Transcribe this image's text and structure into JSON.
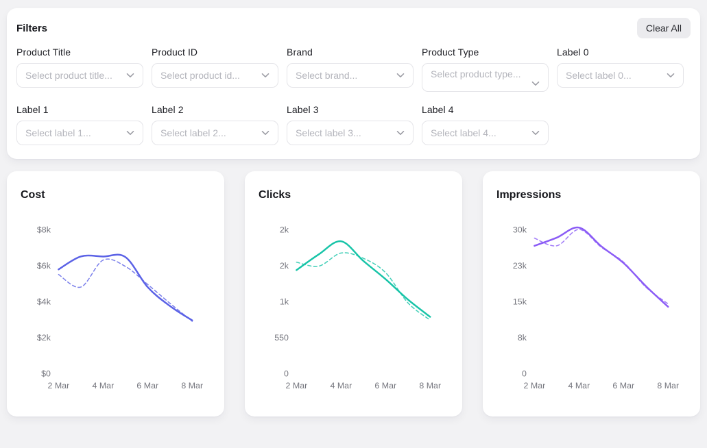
{
  "theme": {
    "page_bg": "#f2f2f4",
    "card_bg": "#ffffff",
    "text_dark": "#17181d",
    "axis_text": "#75767e",
    "placeholder_text": "#b4b5bc",
    "field_border": "#e4e4e8",
    "clear_all_bg": "#ebebee",
    "cost_line": "#5b62e6",
    "clicks_line": "#18c4a8",
    "impressions_line": "#8b5cf6"
  },
  "filters": {
    "title": "Filters",
    "clear_all_label": "Clear All",
    "fields": [
      {
        "label": "Product Title",
        "placeholder": "Select product title...",
        "chevron_wrapped": false
      },
      {
        "label": "Product ID",
        "placeholder": "Select product id...",
        "chevron_wrapped": false
      },
      {
        "label": "Brand",
        "placeholder": "Select brand...",
        "chevron_wrapped": false
      },
      {
        "label": "Product Type",
        "placeholder": "Select product type...",
        "chevron_wrapped": true
      },
      {
        "label": "Label 0",
        "placeholder": "Select label 0...",
        "chevron_wrapped": false
      },
      {
        "label": "Label 1",
        "placeholder": "Select label 1...",
        "chevron_wrapped": false
      },
      {
        "label": "Label 2",
        "placeholder": "Select label 2...",
        "chevron_wrapped": false
      },
      {
        "label": "Label 3",
        "placeholder": "Select label 3...",
        "chevron_wrapped": false
      },
      {
        "label": "Label 4",
        "placeholder": "Select label 4...",
        "chevron_wrapped": false
      }
    ]
  },
  "chart_data": [
    {
      "type": "line",
      "title": "Cost",
      "color": "#5b62e6",
      "grid": false,
      "legend": "none",
      "x": [
        "2 Mar",
        "3 Mar",
        "4 Mar",
        "5 Mar",
        "6 Mar",
        "7 Mar",
        "8 Mar"
      ],
      "x_tick_labels": [
        "2 Mar",
        "4 Mar",
        "6 Mar",
        "8 Mar"
      ],
      "y_tick_labels": [
        "$8k",
        "$6k",
        "$4k",
        "$2k",
        "$0"
      ],
      "y_tick_values": [
        8000,
        6000,
        4000,
        2000,
        0
      ],
      "y_axis_max": 8000,
      "series": [
        {
          "name": "current",
          "style": "solid",
          "values": [
            5780,
            6500,
            6500,
            6470,
            4800,
            3750,
            2950
          ]
        },
        {
          "name": "previous",
          "style": "dashed",
          "values": [
            5500,
            4800,
            6300,
            5950,
            4950,
            3900,
            2900
          ]
        }
      ]
    },
    {
      "type": "line",
      "title": "Clicks",
      "color": "#18c4a8",
      "grid": false,
      "legend": "none",
      "x": [
        "2 Mar",
        "3 Mar",
        "4 Mar",
        "5 Mar",
        "6 Mar",
        "7 Mar",
        "8 Mar"
      ],
      "x_tick_labels": [
        "2 Mar",
        "4 Mar",
        "6 Mar",
        "8 Mar"
      ],
      "y_tick_labels": [
        "2k",
        "2k",
        "1k",
        "550",
        "0"
      ],
      "y_tick_values": [
        2200,
        1650,
        1100,
        550,
        0
      ],
      "y_axis_max": 2200,
      "series": [
        {
          "name": "current",
          "style": "solid",
          "values": [
            1580,
            1820,
            2020,
            1720,
            1440,
            1130,
            865
          ]
        },
        {
          "name": "previous",
          "style": "dashed",
          "values": [
            1700,
            1640,
            1840,
            1760,
            1540,
            1080,
            815
          ]
        }
      ]
    },
    {
      "type": "line",
      "title": "Impressions",
      "color": "#8b5cf6",
      "grid": false,
      "legend": "none",
      "x": [
        "2 Mar",
        "3 Mar",
        "4 Mar",
        "5 Mar",
        "6 Mar",
        "7 Mar",
        "8 Mar"
      ],
      "x_tick_labels": [
        "2 Mar",
        "4 Mar",
        "6 Mar",
        "8 Mar"
      ],
      "y_tick_labels": [
        "30k",
        "23k",
        "15k",
        "8k",
        "0"
      ],
      "y_tick_values": [
        30000,
        22500,
        15000,
        7500,
        0
      ],
      "y_axis_max": 30000,
      "series": [
        {
          "name": "current",
          "style": "solid",
          "values": [
            26600,
            28300,
            30400,
            26500,
            23000,
            18200,
            13900
          ]
        },
        {
          "name": "previous",
          "style": "dashed",
          "values": [
            28200,
            26600,
            30000,
            26300,
            23200,
            18000,
            14500
          ]
        }
      ]
    }
  ]
}
